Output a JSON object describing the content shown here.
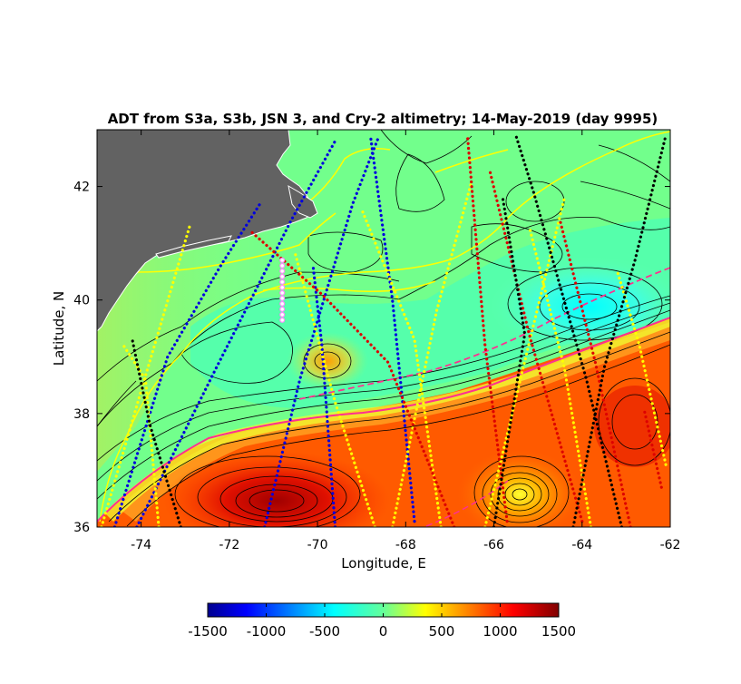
{
  "chart_data": {
    "type": "heatmap",
    "title": "ADT from S3a, S3b, JSN 3, and Cry-2 altimetry; 14-May-2019 (day 9995)",
    "xlabel": "Longitude, E",
    "ylabel": "Latitude, N",
    "xlim": [
      -75,
      -62
    ],
    "ylim": [
      36,
      43
    ],
    "xticks": [
      -74,
      -72,
      -70,
      -68,
      -66,
      -64,
      -62
    ],
    "yticks": [
      36,
      38,
      40,
      42
    ],
    "xtick_labels": [
      "-74",
      "-72",
      "-70",
      "-68",
      "-66",
      "-64",
      "-62"
    ],
    "ytick_labels": [
      "36",
      "38",
      "40",
      "42"
    ],
    "colorbar": {
      "colormap": "jet",
      "range": [
        -1500,
        1500
      ],
      "ticks": [
        -1500,
        -1000,
        -500,
        0,
        500,
        1000,
        1500
      ],
      "tick_labels": [
        "-1500",
        "-1000",
        "-500",
        "0",
        "500",
        "1000",
        "1500"
      ],
      "placement": "bottom"
    },
    "land_color": "#626262",
    "features": {
      "warm_eddies": [
        {
          "lon": -70.7,
          "lat": 36.4,
          "value": 1300
        },
        {
          "lon": -65.4,
          "lat": 36.6,
          "value": 850
        }
      ],
      "cold_eddy": {
        "lon": -63.7,
        "lat": 39.9,
        "value": -350
      },
      "small_anticyclone": {
        "lon": -69.7,
        "lat": 38.9,
        "value": 250
      },
      "gulf_stream_front_lat": [
        [
          -75,
          36.2
        ],
        [
          -73,
          37.1
        ],
        [
          -71,
          37.8
        ],
        [
          -69,
          38.1
        ],
        [
          -67,
          38.4
        ],
        [
          -65,
          38.9
        ],
        [
          -63,
          39.4
        ],
        [
          -62,
          39.7
        ]
      ]
    },
    "tracks": [
      {
        "color": "#0000dd",
        "points": [
          [
            -74.6,
            36.0
          ],
          [
            -73.4,
            39.0
          ],
          [
            -72.2,
            40.6
          ],
          [
            -71.3,
            41.7
          ]
        ]
      },
      {
        "color": "#0000dd",
        "points": [
          [
            -74.1,
            36.0
          ],
          [
            -72.3,
            38.8
          ],
          [
            -70.6,
            41.4
          ],
          [
            -69.6,
            42.8
          ]
        ]
      },
      {
        "color": "#0000dd",
        "points": [
          [
            -71.2,
            36.0
          ],
          [
            -70.4,
            38.6
          ],
          [
            -69.2,
            41.7
          ],
          [
            -68.6,
            42.9
          ]
        ]
      },
      {
        "color": "#0000dd",
        "points": [
          [
            -69.6,
            36.0
          ],
          [
            -69.9,
            39.2
          ],
          [
            -70.1,
            40.6
          ]
        ]
      },
      {
        "color": "#0000dd",
        "points": [
          [
            -67.8,
            36.1
          ],
          [
            -68.3,
            40.0
          ],
          [
            -68.8,
            42.9
          ]
        ]
      },
      {
        "color": "#ffff00",
        "points": [
          [
            -74.9,
            36.0
          ],
          [
            -74.0,
            38.4
          ],
          [
            -72.9,
            41.3
          ]
        ]
      },
      {
        "color": "#ffff00",
        "points": [
          [
            -73.6,
            36.0
          ],
          [
            -73.9,
            38.6
          ],
          [
            -74.4,
            39.2
          ]
        ]
      },
      {
        "color": "#ffff00",
        "points": [
          [
            -68.7,
            36.0
          ],
          [
            -69.6,
            38.2
          ],
          [
            -70.5,
            40.8
          ]
        ]
      },
      {
        "color": "#ffff00",
        "points": [
          [
            -68.3,
            36.0
          ],
          [
            -67.3,
            39.8
          ],
          [
            -66.5,
            42.1
          ]
        ]
      },
      {
        "color": "#ffff00",
        "points": [
          [
            -67.2,
            36.0
          ],
          [
            -67.8,
            39.3
          ],
          [
            -69.0,
            41.6
          ]
        ]
      },
      {
        "color": "#ffff00",
        "points": [
          [
            -66.2,
            36.0
          ],
          [
            -65.4,
            38.6
          ],
          [
            -64.4,
            41.8
          ]
        ]
      },
      {
        "color": "#ffff00",
        "points": [
          [
            -63.8,
            36.0
          ],
          [
            -64.4,
            38.8
          ],
          [
            -65.2,
            41.3
          ]
        ]
      },
      {
        "color": "#ffff00",
        "points": [
          [
            -62.1,
            37.1
          ],
          [
            -62.7,
            39.2
          ],
          [
            -63.2,
            40.5
          ]
        ]
      },
      {
        "color": "#dd0000",
        "points": [
          [
            -66.9,
            36.0
          ],
          [
            -68.4,
            38.9
          ],
          [
            -69.9,
            40.1
          ],
          [
            -71.5,
            41.2
          ]
        ]
      },
      {
        "color": "#dd0000",
        "points": [
          [
            -65.7,
            36.1
          ],
          [
            -66.2,
            39.2
          ],
          [
            -66.6,
            42.9
          ]
        ]
      },
      {
        "color": "#dd0000",
        "points": [
          [
            -64.0,
            36.1
          ],
          [
            -65.2,
            39.4
          ],
          [
            -66.1,
            42.3
          ]
        ]
      },
      {
        "color": "#dd0000",
        "points": [
          [
            -62.9,
            36.0
          ],
          [
            -63.7,
            38.9
          ],
          [
            -64.5,
            41.4
          ]
        ]
      },
      {
        "color": "#dd0000",
        "points": [
          [
            -62.2,
            36.7
          ],
          [
            -62.6,
            38.1
          ]
        ]
      },
      {
        "color": "#000000",
        "points": [
          [
            -73.1,
            36.0
          ],
          [
            -73.8,
            37.8
          ],
          [
            -74.2,
            39.3
          ]
        ]
      },
      {
        "color": "#000000",
        "points": [
          [
            -66.0,
            36.0
          ],
          [
            -65.3,
            39.4
          ],
          [
            -65.8,
            41.8
          ]
        ]
      },
      {
        "color": "#000000",
        "points": [
          [
            -64.2,
            36.0
          ],
          [
            -63.5,
            38.8
          ],
          [
            -62.8,
            40.7
          ],
          [
            -62.1,
            42.9
          ]
        ]
      },
      {
        "color": "#000000",
        "points": [
          [
            -63.1,
            36.0
          ],
          [
            -63.9,
            38.6
          ],
          [
            -65.1,
            41.9
          ],
          [
            -65.5,
            42.9
          ]
        ]
      }
    ],
    "mooring": {
      "lon": -70.8,
      "lat_range": [
        39.6,
        40.7
      ],
      "color": "#ff88ff"
    }
  }
}
